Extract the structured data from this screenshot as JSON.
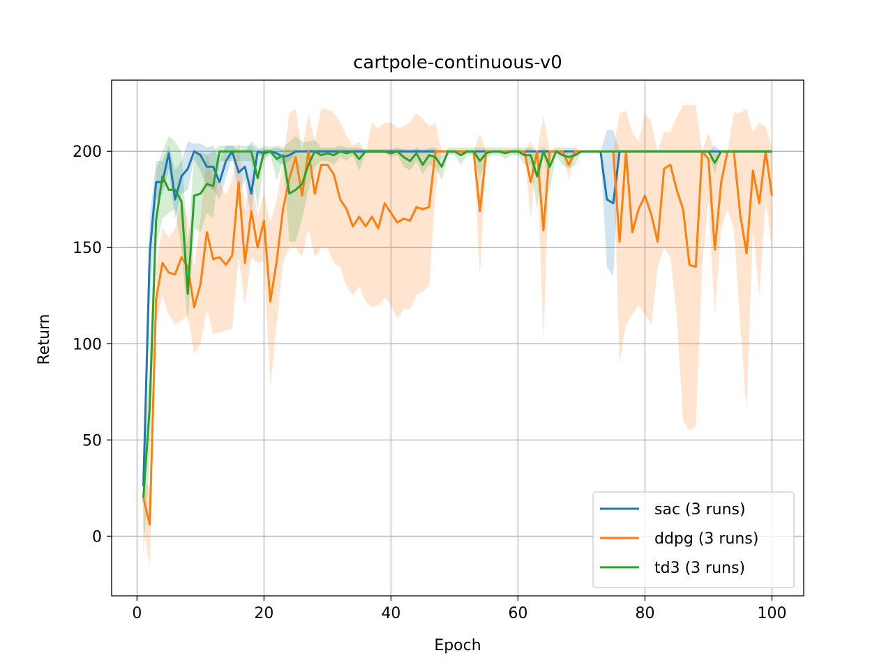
{
  "chart_data": {
    "type": "line",
    "title": "cartpole-continuous-v0",
    "xlabel": "Epoch",
    "ylabel": "Return",
    "xlim": [
      -4,
      105
    ],
    "ylim": [
      -31,
      237
    ],
    "xticks": [
      0,
      20,
      40,
      60,
      80,
      100
    ],
    "yticks": [
      0,
      50,
      100,
      150,
      200
    ],
    "grid": true,
    "legend_position": "lower-right",
    "colors": {
      "sac": "#1f77b4",
      "ddpg": "#ff7f0e",
      "td3": "#2ca02c"
    },
    "x": [
      1,
      2,
      3,
      4,
      5,
      6,
      7,
      8,
      9,
      10,
      11,
      12,
      13,
      14,
      15,
      16,
      17,
      18,
      19,
      20,
      21,
      22,
      23,
      24,
      25,
      26,
      27,
      28,
      29,
      30,
      31,
      32,
      33,
      34,
      35,
      36,
      37,
      38,
      39,
      40,
      41,
      42,
      43,
      44,
      45,
      46,
      47,
      48,
      49,
      50,
      51,
      52,
      53,
      54,
      55,
      56,
      57,
      58,
      59,
      60,
      61,
      62,
      63,
      64,
      65,
      66,
      67,
      68,
      69,
      70,
      71,
      72,
      73,
      74,
      75,
      76,
      77,
      78,
      79,
      80,
      81,
      82,
      83,
      84,
      85,
      86,
      87,
      88,
      89,
      90,
      91,
      92,
      93,
      94,
      95,
      96,
      97,
      98,
      99,
      100
    ],
    "series": [
      {
        "name": "sac (3 runs)",
        "values": [
          26,
          147,
          184,
          184,
          199,
          175,
          187,
          191,
          200,
          198,
          192,
          192,
          184,
          195,
          200,
          189,
          192,
          178,
          200,
          199,
          200,
          199,
          197,
          198,
          200,
          200,
          200,
          200,
          200,
          200,
          200,
          200,
          200,
          200,
          200,
          200,
          200,
          200,
          200,
          200,
          200,
          200,
          200,
          200,
          200,
          200,
          200,
          200,
          200,
          200,
          200,
          200,
          200,
          200,
          200,
          200,
          200,
          200,
          200,
          200,
          200,
          200,
          200,
          200,
          200,
          200,
          200,
          200,
          200,
          200,
          200,
          200,
          200,
          175,
          173,
          200,
          200,
          200,
          200,
          200,
          200,
          200,
          200,
          200,
          200,
          200,
          200,
          200,
          200,
          200,
          200,
          200,
          200,
          200,
          200,
          200,
          200,
          200,
          200,
          200
        ],
        "lower": [
          10,
          120,
          175,
          178,
          190,
          165,
          178,
          180,
          196,
          190,
          182,
          180,
          175,
          186,
          197,
          178,
          185,
          165,
          198,
          197,
          199,
          195,
          193,
          195,
          199,
          200,
          200,
          199,
          199,
          199,
          199,
          199,
          199,
          199,
          199,
          199,
          199,
          199,
          199,
          199,
          199,
          199,
          199,
          199,
          199,
          199,
          199,
          200,
          200,
          200,
          200,
          200,
          200,
          200,
          200,
          200,
          200,
          200,
          200,
          200,
          200,
          200,
          200,
          200,
          200,
          200,
          200,
          200,
          200,
          200,
          200,
          200,
          200,
          140,
          135,
          200,
          200,
          200,
          200,
          200,
          200,
          200,
          200,
          200,
          200,
          200,
          200,
          200,
          200,
          200,
          200,
          200,
          200,
          200,
          200,
          200,
          200,
          200,
          200,
          200
        ],
        "upper": [
          40,
          165,
          195,
          195,
          203,
          190,
          195,
          205,
          204,
          204,
          202,
          203,
          195,
          203,
          203,
          200,
          200,
          205,
          202,
          201,
          201,
          202,
          201,
          201,
          201,
          200,
          201,
          201,
          201,
          201,
          201,
          201,
          201,
          201,
          201,
          201,
          201,
          201,
          201,
          201,
          201,
          201,
          201,
          201,
          201,
          201,
          201,
          200,
          200,
          200,
          200,
          200,
          200,
          200,
          200,
          200,
          200,
          200,
          200,
          200,
          200,
          200,
          200,
          200,
          200,
          200,
          200,
          200,
          200,
          200,
          200,
          200,
          200,
          211,
          211,
          200,
          200,
          200,
          200,
          200,
          200,
          200,
          200,
          200,
          200,
          200,
          200,
          200,
          200,
          200,
          203,
          200,
          200,
          200,
          200,
          200,
          200,
          200,
          200,
          200
        ]
      },
      {
        "name": "ddpg (3 runs)",
        "values": [
          20,
          6,
          123,
          142,
          137,
          136,
          145,
          140,
          119,
          131,
          158,
          144,
          145,
          141,
          146,
          184,
          142,
          169,
          150,
          164,
          122,
          143,
          170,
          186,
          197,
          177,
          200,
          178,
          193,
          193,
          188,
          175,
          170,
          161,
          166,
          161,
          166,
          160,
          173,
          168,
          163,
          165,
          164,
          171,
          170,
          171,
          200,
          200,
          200,
          200,
          200,
          200,
          200,
          169,
          200,
          200,
          200,
          200,
          200,
          200,
          200,
          184,
          200,
          159,
          200,
          200,
          200,
          193,
          200,
          200,
          200,
          200,
          200,
          200,
          200,
          153,
          200,
          158,
          170,
          177,
          167,
          153,
          191,
          193,
          180,
          170,
          141,
          140,
          200,
          196,
          149,
          184,
          200,
          200,
          167,
          147,
          190,
          173,
          200,
          177
        ],
        "lower": [
          5,
          -16,
          110,
          125,
          115,
          110,
          112,
          115,
          95,
          100,
          118,
          105,
          106,
          107,
          108,
          145,
          120,
          145,
          142,
          143,
          78,
          110,
          142,
          150,
          150,
          145,
          160,
          145,
          150,
          150,
          142,
          140,
          130,
          125,
          130,
          122,
          119,
          120,
          124,
          120,
          113,
          118,
          118,
          125,
          127,
          130,
          178,
          200,
          200,
          200,
          200,
          200,
          200,
          135,
          200,
          200,
          200,
          200,
          200,
          200,
          200,
          165,
          200,
          102,
          200,
          200,
          200,
          185,
          200,
          200,
          200,
          200,
          200,
          200,
          200,
          90,
          110,
          115,
          120,
          115,
          110,
          140,
          150,
          145,
          115,
          60,
          55,
          57,
          140,
          175,
          115,
          160,
          170,
          160,
          110,
          65,
          160,
          125,
          175,
          150
        ],
        "upper": [
          30,
          25,
          140,
          160,
          155,
          160,
          175,
          165,
          140,
          165,
          200,
          185,
          184,
          177,
          185,
          205,
          170,
          190,
          166,
          178,
          163,
          175,
          195,
          220,
          222,
          200,
          220,
          205,
          222,
          222,
          220,
          215,
          208,
          203,
          205,
          198,
          215,
          212,
          215,
          215,
          212,
          213,
          215,
          220,
          217,
          213,
          215,
          200,
          200,
          200,
          200,
          200,
          200,
          209,
          200,
          200,
          200,
          200,
          200,
          200,
          200,
          205,
          200,
          218,
          200,
          200,
          200,
          199,
          200,
          200,
          200,
          200,
          200,
          200,
          200,
          220,
          221,
          210,
          205,
          220,
          215,
          200,
          210,
          210,
          218,
          224,
          224,
          224,
          200,
          210,
          200,
          200,
          200,
          220,
          220,
          222,
          210,
          215,
          213,
          202
        ]
      },
      {
        "name": "td3 (3 runs)",
        "values": [
          20,
          67,
          164,
          187,
          180,
          180,
          174,
          126,
          177,
          178,
          183,
          182,
          200,
          200,
          200,
          200,
          200,
          200,
          186,
          200,
          200,
          196,
          198,
          178,
          180,
          183,
          193,
          200,
          198,
          199,
          198,
          200,
          199,
          200,
          196,
          200,
          200,
          200,
          200,
          199,
          200,
          197,
          195,
          199,
          193,
          198,
          197,
          192,
          200,
          200,
          198,
          200,
          200,
          195,
          199,
          200,
          200,
          199,
          200,
          200,
          198,
          198,
          187,
          200,
          192,
          200,
          198,
          197,
          198,
          200,
          200,
          200,
          200,
          200,
          200,
          200,
          200,
          200,
          200,
          200,
          200,
          200,
          200,
          200,
          200,
          200,
          200,
          200,
          200,
          200,
          194,
          200,
          200,
          200,
          200,
          200,
          200,
          200,
          200,
          200
        ],
        "lower": [
          -10,
          40,
          150,
          165,
          168,
          170,
          150,
          110,
          160,
          158,
          168,
          165,
          195,
          195,
          195,
          195,
          195,
          195,
          170,
          195,
          198,
          185,
          195,
          153,
          153,
          165,
          180,
          192,
          195,
          195,
          193,
          197,
          195,
          198,
          190,
          199,
          199,
          199,
          199,
          197,
          198,
          192,
          190,
          195,
          188,
          193,
          192,
          185,
          198,
          198,
          193,
          198,
          198,
          186,
          196,
          198,
          198,
          196,
          198,
          198,
          193,
          193,
          170,
          198,
          180,
          198,
          193,
          191,
          193,
          200,
          200,
          200,
          200,
          200,
          200,
          200,
          200,
          200,
          200,
          200,
          200,
          200,
          200,
          200,
          200,
          200,
          200,
          200,
          200,
          200,
          188,
          200,
          200,
          200,
          200,
          200,
          200,
          200,
          200,
          200
        ],
        "upper": [
          40,
          90,
          190,
          200,
          208,
          205,
          200,
          150,
          198,
          200,
          198,
          200,
          203,
          203,
          203,
          203,
          203,
          203,
          200,
          203,
          202,
          203,
          202,
          205,
          208,
          205,
          205,
          206,
          202,
          202,
          202,
          203,
          202,
          202,
          202,
          201,
          201,
          201,
          201,
          201,
          202,
          201,
          200,
          202,
          200,
          202,
          202,
          198,
          202,
          202,
          202,
          202,
          202,
          202,
          202,
          202,
          202,
          202,
          202,
          202,
          202,
          202,
          200,
          202,
          200,
          202,
          202,
          202,
          202,
          200,
          200,
          200,
          200,
          200,
          200,
          200,
          200,
          200,
          200,
          200,
          200,
          200,
          200,
          200,
          200,
          200,
          200,
          200,
          200,
          200,
          200,
          200,
          200,
          200,
          200,
          200,
          200,
          200,
          200,
          200
        ]
      }
    ]
  }
}
